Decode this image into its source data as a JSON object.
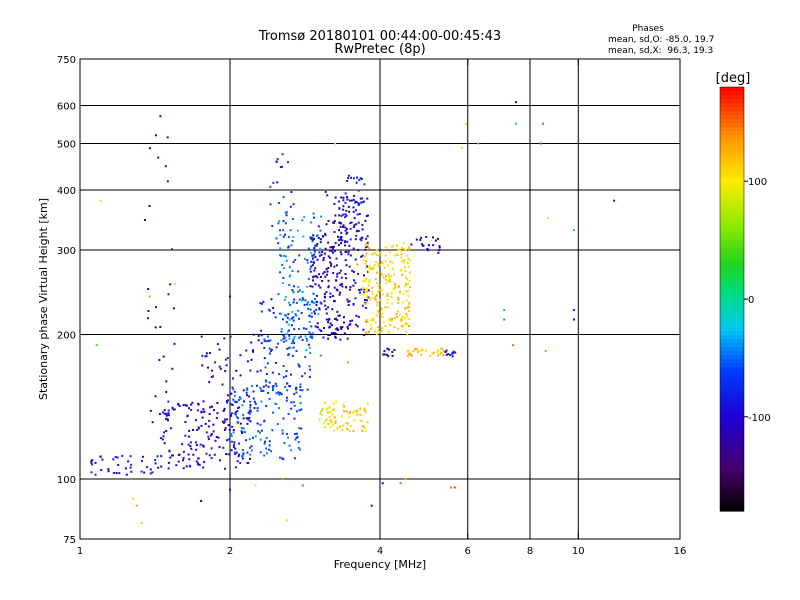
{
  "chart_data": {
    "type": "scatter",
    "title": "Tromsø 20180101 00:44:00-00:45:43",
    "subtitle": "RwPretec (8p)",
    "xlabel": "Frequency [MHz]",
    "ylabel": "Stationary phase Virtual Height [km]",
    "x_scale": "log2",
    "y_scale": "log",
    "xlim": [
      1,
      16
    ],
    "ylim": [
      75,
      750
    ],
    "xticks": [
      1,
      2,
      4,
      6,
      8,
      10,
      16
    ],
    "yticks": [
      75,
      100,
      200,
      300,
      400,
      500,
      600,
      750
    ],
    "grid": true,
    "colorbar": {
      "label": "[deg]",
      "range": [
        -180,
        180
      ],
      "ticks": [
        100,
        0,
        -100
      ]
    },
    "stats_header": "Phases",
    "stats": [
      "mean, sd,O: -85.0, 19.7",
      "mean, sd,X:  96.3, 19.3"
    ],
    "clusters": [
      {
        "x": [
          1.05,
          1.45
        ],
        "y": [
          102,
          112
        ],
        "phase": -90,
        "n": 40
      },
      {
        "x": [
          1.35,
          1.55
        ],
        "y": [
          105,
          500
        ],
        "phase": -115,
        "n": 30
      },
      {
        "x": [
          1.45,
          2.2
        ],
        "y": [
          105,
          145
        ],
        "phase": -95,
        "n": 160
      },
      {
        "x": [
          1.75,
          2.3
        ],
        "y": [
          125,
          200
        ],
        "phase": -95,
        "n": 80
      },
      {
        "x": [
          2.0,
          2.8
        ],
        "y": [
          110,
          160
        ],
        "phase": -55,
        "n": 130
      },
      {
        "x": [
          2.3,
          2.95
        ],
        "y": [
          150,
          240
        ],
        "phase": -70,
        "n": 110
      },
      {
        "x": [
          2.5,
          3.05
        ],
        "y": [
          180,
          360
        ],
        "phase": -45,
        "n": 140
      },
      {
        "x": [
          2.4,
          2.7
        ],
        "y": [
          300,
          470
        ],
        "phase": -70,
        "n": 25
      },
      {
        "x": [
          2.9,
          3.35
        ],
        "y": [
          195,
          340
        ],
        "phase": -110,
        "n": 130
      },
      {
        "x": [
          3.1,
          3.45
        ],
        "y": [
          195,
          400
        ],
        "phase": -125,
        "n": 60
      },
      {
        "x": [
          3.3,
          3.8
        ],
        "y": [
          195,
          390
        ],
        "phase": -105,
        "n": 110
      },
      {
        "x": [
          3.4,
          3.75
        ],
        "y": [
          300,
          430
        ],
        "phase": -85,
        "n": 45
      },
      {
        "x": [
          3.7,
          4.6
        ],
        "y": [
          200,
          310
        ],
        "phase": 110,
        "n": 230
      },
      {
        "x": [
          4.5,
          5.4
        ],
        "y": [
          180,
          187
        ],
        "phase": 118,
        "n": 30
      },
      {
        "x": [
          4.0,
          4.3
        ],
        "y": [
          180,
          187
        ],
        "phase": -120,
        "n": 10
      },
      {
        "x": [
          5.4,
          5.7
        ],
        "y": [
          180,
          186
        ],
        "phase": -100,
        "n": 12
      },
      {
        "x": [
          4.6,
          5.3
        ],
        "y": [
          295,
          320
        ],
        "phase": -95,
        "n": 20
      },
      {
        "x": [
          3.1,
          3.8
        ],
        "y": [
          125,
          145
        ],
        "phase": 115,
        "n": 60
      },
      {
        "x": [
          3.0,
          3.2
        ],
        "y": [
          130,
          140
        ],
        "phase": 80,
        "n": 10
      }
    ],
    "isolated_points": [
      {
        "x": 1.1,
        "y": 380,
        "phase": 90
      },
      {
        "x": 1.08,
        "y": 190,
        "phase": 45
      },
      {
        "x": 1.28,
        "y": 91,
        "phase": 110
      },
      {
        "x": 1.33,
        "y": 81,
        "phase": 110
      },
      {
        "x": 1.3,
        "y": 88,
        "phase": 130
      },
      {
        "x": 1.38,
        "y": 240,
        "phase": 50
      },
      {
        "x": 1.45,
        "y": 570,
        "phase": -130
      },
      {
        "x": 1.42,
        "y": 520,
        "phase": -110
      },
      {
        "x": 1.5,
        "y": 515,
        "phase": -120
      },
      {
        "x": 1.55,
        "y": 255,
        "phase": 90
      },
      {
        "x": 1.75,
        "y": 90,
        "phase": -100
      },
      {
        "x": 2.0,
        "y": 95,
        "phase": -90
      },
      {
        "x": 2.0,
        "y": 240,
        "phase": -100
      },
      {
        "x": 2.25,
        "y": 97,
        "phase": 100
      },
      {
        "x": 2.55,
        "y": 100,
        "phase": 140
      },
      {
        "x": 2.8,
        "y": 97,
        "phase": 155
      },
      {
        "x": 2.6,
        "y": 82,
        "phase": 110
      },
      {
        "x": 2.55,
        "y": 475,
        "phase": -60
      },
      {
        "x": 3.25,
        "y": 500,
        "phase": 110
      },
      {
        "x": 3.45,
        "y": 175,
        "phase": 140
      },
      {
        "x": 3.6,
        "y": 280,
        "phase": 140
      },
      {
        "x": 3.85,
        "y": 88,
        "phase": -110
      },
      {
        "x": 4.05,
        "y": 98,
        "phase": -100
      },
      {
        "x": 4.4,
        "y": 98,
        "phase": 150
      },
      {
        "x": 4.5,
        "y": 100,
        "phase": 125
      },
      {
        "x": 5.55,
        "y": 96,
        "phase": 145
      },
      {
        "x": 5.65,
        "y": 96,
        "phase": 165
      },
      {
        "x": 5.95,
        "y": 550,
        "phase": 105
      },
      {
        "x": 5.85,
        "y": 490,
        "phase": 110
      },
      {
        "x": 6.3,
        "y": 500,
        "phase": -20
      },
      {
        "x": 7.1,
        "y": 225,
        "phase": -30
      },
      {
        "x": 7.1,
        "y": 215,
        "phase": -40
      },
      {
        "x": 7.4,
        "y": 190,
        "phase": 150
      },
      {
        "x": 7.5,
        "y": 610,
        "phase": -120
      },
      {
        "x": 7.5,
        "y": 550,
        "phase": -10
      },
      {
        "x": 8.5,
        "y": 550,
        "phase": 155
      },
      {
        "x": 8.4,
        "y": 500,
        "phase": 165
      },
      {
        "x": 8.7,
        "y": 350,
        "phase": 100
      },
      {
        "x": 8.6,
        "y": 185,
        "phase": 140
      },
      {
        "x": 9.8,
        "y": 330,
        "phase": -20
      },
      {
        "x": 9.8,
        "y": 225,
        "phase": -90
      },
      {
        "x": 9.8,
        "y": 215,
        "phase": -100
      },
      {
        "x": 11.8,
        "y": 380,
        "phase": -120
      }
    ]
  }
}
